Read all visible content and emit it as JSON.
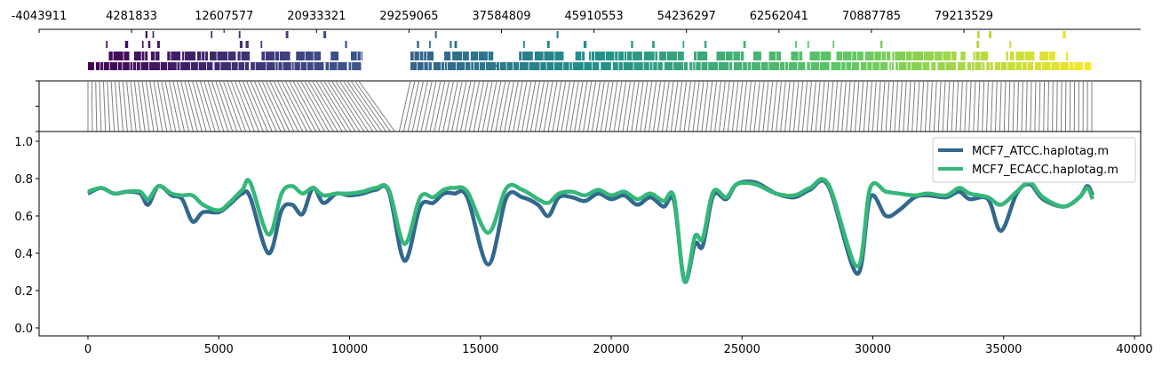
{
  "chart_data": [
    {
      "panel": "gene-track",
      "type": "other",
      "description": "Genomic feature track: colored (viridis gradient) interval bars stacked in 4 rows along genome coordinate",
      "top_axis": {
        "tick_labels": [
          "-4043911",
          "4281833",
          "12607577",
          "20933321",
          "29259065",
          "37584809",
          "45910553",
          "54236297",
          "62562041",
          "70887785",
          "79213529"
        ],
        "tick_values": [
          -4043911,
          4281833,
          12607577,
          20933321,
          29259065,
          37584809,
          45910553,
          54236297,
          62562041,
          70887785,
          79213529
        ]
      },
      "colormap": "viridis",
      "colors": [
        "#440154",
        "#3b528b",
        "#21908c",
        "#5dc863",
        "#fde725"
      ]
    },
    {
      "panel": "link-track",
      "type": "other",
      "description": "Gray connector lines mapping genome coordinates (top) to window index positions (bottom)",
      "line_color": "#7f7f7f",
      "yticks": 3
    },
    {
      "panel": "main",
      "type": "line",
      "title": "",
      "xlabel": "",
      "ylabel": "",
      "xlim": [
        -2000,
        40200
      ],
      "ylim": [
        -0.05,
        1.05
      ],
      "xticks": [
        0,
        5000,
        10000,
        15000,
        20000,
        25000,
        30000,
        35000,
        40000
      ],
      "yticks": [
        0.0,
        0.2,
        0.4,
        0.6,
        0.8,
        1.0
      ],
      "grid": false,
      "legend_position": "upper right",
      "series": [
        {
          "name": "MCF7_ATCC.haplotag.m",
          "color": "#31688e",
          "x": [
            0,
            500,
            1000,
            1500,
            2000,
            2300,
            2700,
            3200,
            3600,
            4000,
            4400,
            5000,
            5400,
            5900,
            6200,
            6900,
            7400,
            7800,
            8200,
            8600,
            9000,
            9500,
            10000,
            10500,
            11000,
            11500,
            12100,
            12700,
            13200,
            13600,
            14000,
            14500,
            15300,
            16000,
            16600,
            17200,
            17600,
            18000,
            18500,
            19000,
            19500,
            20000,
            20500,
            21000,
            21500,
            22000,
            22400,
            22800,
            23200,
            23500,
            23900,
            24400,
            24800,
            25500,
            26300,
            27000,
            27600,
            28300,
            29400,
            29900,
            30500,
            31000,
            31600,
            32100,
            32800,
            33300,
            33700,
            34400,
            34900,
            35500,
            36000,
            36500,
            37300,
            37900,
            38200,
            38400
          ],
          "values": [
            0.72,
            0.75,
            0.72,
            0.73,
            0.72,
            0.66,
            0.76,
            0.71,
            0.69,
            0.57,
            0.62,
            0.62,
            0.66,
            0.72,
            0.7,
            0.4,
            0.63,
            0.66,
            0.61,
            0.75,
            0.67,
            0.72,
            0.71,
            0.72,
            0.74,
            0.73,
            0.36,
            0.65,
            0.67,
            0.72,
            0.72,
            0.7,
            0.34,
            0.7,
            0.7,
            0.66,
            0.6,
            0.7,
            0.7,
            0.68,
            0.72,
            0.69,
            0.71,
            0.66,
            0.7,
            0.65,
            0.68,
            0.25,
            0.45,
            0.44,
            0.71,
            0.69,
            0.77,
            0.78,
            0.72,
            0.7,
            0.74,
            0.76,
            0.29,
            0.7,
            0.6,
            0.63,
            0.7,
            0.71,
            0.7,
            0.73,
            0.69,
            0.69,
            0.52,
            0.72,
            0.77,
            0.69,
            0.65,
            0.7,
            0.76,
            0.71
          ]
        },
        {
          "name": "MCF7_ECACC.haplotag.m",
          "color": "#35b779",
          "x": [
            0,
            500,
            1000,
            1500,
            2000,
            2300,
            2700,
            3200,
            3600,
            4000,
            4400,
            5000,
            5400,
            5900,
            6200,
            6900,
            7400,
            7800,
            8200,
            8600,
            9000,
            9500,
            10000,
            10500,
            11000,
            11500,
            12100,
            12700,
            13200,
            13600,
            14000,
            14500,
            15300,
            16000,
            16600,
            17200,
            17600,
            18000,
            18500,
            19000,
            19500,
            20000,
            20500,
            21000,
            21500,
            22000,
            22400,
            22800,
            23200,
            23500,
            23900,
            24400,
            24800,
            25500,
            26300,
            27000,
            27600,
            28300,
            29400,
            29900,
            30500,
            31000,
            31600,
            32100,
            32800,
            33300,
            33700,
            34400,
            34900,
            35500,
            36000,
            36500,
            37300,
            37900,
            38200,
            38400
          ],
          "values": [
            0.73,
            0.75,
            0.72,
            0.73,
            0.73,
            0.69,
            0.76,
            0.72,
            0.71,
            0.71,
            0.66,
            0.63,
            0.67,
            0.74,
            0.78,
            0.5,
            0.72,
            0.76,
            0.72,
            0.75,
            0.71,
            0.72,
            0.72,
            0.73,
            0.75,
            0.74,
            0.45,
            0.7,
            0.7,
            0.74,
            0.75,
            0.73,
            0.51,
            0.75,
            0.74,
            0.69,
            0.67,
            0.72,
            0.73,
            0.71,
            0.74,
            0.71,
            0.73,
            0.69,
            0.72,
            0.68,
            0.7,
            0.25,
            0.49,
            0.48,
            0.73,
            0.7,
            0.77,
            0.77,
            0.72,
            0.71,
            0.75,
            0.77,
            0.33,
            0.75,
            0.73,
            0.72,
            0.71,
            0.72,
            0.71,
            0.75,
            0.72,
            0.7,
            0.66,
            0.73,
            0.78,
            0.7,
            0.65,
            0.7,
            0.75,
            0.69
          ]
        }
      ]
    }
  ],
  "legend": {
    "items": [
      {
        "label": "MCF7_ATCC.haplotag.m",
        "color": "#31688e"
      },
      {
        "label": "MCF7_ECACC.haplotag.m",
        "color": "#35b779"
      }
    ]
  }
}
